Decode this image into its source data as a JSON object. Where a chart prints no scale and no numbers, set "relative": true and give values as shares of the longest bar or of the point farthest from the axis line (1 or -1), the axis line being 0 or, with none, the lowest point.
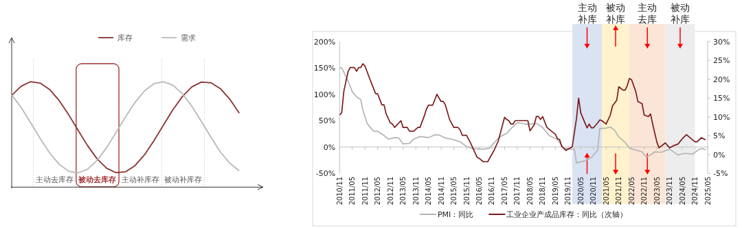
{
  "chart_data": [
    {
      "type": "line",
      "relative": true,
      "legend": "top",
      "categories": [
        null,
        null,
        null,
        null,
        null,
        null,
        null,
        null,
        null,
        null,
        null,
        null,
        null,
        null,
        null,
        null,
        null,
        null,
        null,
        null,
        null,
        null,
        null,
        null,
        null
      ],
      "series": [
        {
          "name": "库存",
          "color": "#8b3030",
          "values": [
            0.87,
            0.957,
            1,
            0.987,
            0.926,
            0.822,
            0.688,
            0.539,
            0.394,
            0.269,
            0.18,
            0.137,
            0.145,
            0.204,
            0.306,
            0.44,
            0.588,
            0.734,
            0.86,
            0.951,
            0.996,
            0.99,
            0.934,
            0.834,
            0.701
          ]
        },
        {
          "name": "需求",
          "color": "#b8b8b8",
          "values": [
            0.876,
            0.755,
            0.611,
            0.461,
            0.325,
            0.217,
            0.151,
            0.135,
            0.17,
            0.253,
            0.373,
            0.516,
            0.666,
            0.803,
            0.913,
            0.981,
            1,
            0.967,
            0.886,
            0.767,
            0.624,
            0.474,
            0.335,
            0.226,
            0.155
          ]
        }
      ],
      "annotations": [
        "主动去库存",
        "被动去库存",
        "主动补库存",
        "被动补库存"
      ]
    },
    {
      "type": "line",
      "legend": "bottom",
      "xlim": [
        "2010-11",
        "2025-05"
      ],
      "xticks": [
        {
          "value": "2010-11",
          "label": "2010/11"
        },
        {
          "value": "2011-05",
          "label": "2011/05"
        },
        {
          "value": "2011-11",
          "label": "2011/11"
        },
        {
          "value": "2012-05",
          "label": "2012/05"
        },
        {
          "value": "2012-11",
          "label": "2012/11"
        },
        {
          "value": "2013-05",
          "label": "2013/05"
        },
        {
          "value": "2013-11",
          "label": "2013/11"
        },
        {
          "value": "2014-05",
          "label": "2014/05"
        },
        {
          "value": "2014-11",
          "label": "2014/11"
        },
        {
          "value": "2015-05",
          "label": "2015/05"
        },
        {
          "value": "2015-11",
          "label": "2015/11"
        },
        {
          "value": "2016-05",
          "label": "2016/05"
        },
        {
          "value": "2016-11",
          "label": "2016/11"
        },
        {
          "value": "2017-05",
          "label": "2017/05"
        },
        {
          "value": "2017-11",
          "label": "2017/11"
        },
        {
          "value": "2018-05",
          "label": "2018/05"
        },
        {
          "value": "2018-11",
          "label": "2018/11"
        },
        {
          "value": "2019-05",
          "label": "2019/05"
        },
        {
          "value": "2019-11",
          "label": "2019/11"
        },
        {
          "value": "2020-05",
          "label": "2020/05"
        },
        {
          "value": "2020-11",
          "label": "2020/11"
        },
        {
          "value": "2021-05",
          "label": "2021/05"
        },
        {
          "value": "2021-11",
          "label": "2021/11"
        },
        {
          "value": "2022-05",
          "label": "2022/05"
        },
        {
          "value": "2022-11",
          "label": "2022/11"
        },
        {
          "value": "2023-05",
          "label": "2023/05"
        },
        {
          "value": "2023-11",
          "label": "2023/11"
        },
        {
          "value": "2024-05",
          "label": "2024/05"
        },
        {
          "value": "2024-11",
          "label": "2024/11"
        },
        {
          "value": "2025-05",
          "label": "2025/05"
        }
      ],
      "ylim": [
        -50,
        200
      ],
      "yticks": [
        {
          "value": -50,
          "label": "-50%"
        },
        {
          "value": 0,
          "label": "0%"
        },
        {
          "value": 50,
          "label": "50%"
        },
        {
          "value": 100,
          "label": "100%"
        },
        {
          "value": 150,
          "label": "150%"
        },
        {
          "value": 200,
          "label": "200%"
        }
      ],
      "y2lim": [
        -5,
        30
      ],
      "y2ticks": [
        {
          "value": -5,
          "label": "-5%"
        },
        {
          "value": 0,
          "label": "0%"
        },
        {
          "value": 5,
          "label": "5%"
        },
        {
          "value": 10,
          "label": "10%"
        },
        {
          "value": 15,
          "label": "15%"
        },
        {
          "value": 20,
          "label": "20%"
        },
        {
          "value": 25,
          "label": "25%"
        },
        {
          "value": 30,
          "label": "30%"
        }
      ],
      "bands": [
        {
          "axis": "x",
          "from": "2020-01",
          "to": "2021-03",
          "label": "主动补库",
          "color": "#dae3f3"
        },
        {
          "axis": "x",
          "from": "2021-03",
          "to": "2022-04",
          "label": "被动补库",
          "color": "#fff2cc"
        },
        {
          "axis": "x",
          "from": "2022-04",
          "to": "2023-09",
          "label": "主动去库",
          "color": "#fbe5d6"
        },
        {
          "axis": "x",
          "from": "2023-09",
          "to": "2024-11",
          "label": "被动补库",
          "color": "#ededed"
        }
      ],
      "series": [
        {
          "name": "PMI：同比",
          "color": "#b4b4b4",
          "x": [
            "2010-11",
            "2010-12",
            "2011-03",
            "2011-05",
            "2011-07",
            "2011-09",
            "2011-10",
            "2011-12",
            "2012-03",
            "2012-05",
            "2012-08",
            "2012-10",
            "2013-01",
            "2013-03",
            "2013-05",
            "2013-08",
            "2013-10",
            "2014-01",
            "2014-05",
            "2014-08",
            "2014-10",
            "2015-01",
            "2015-04",
            "2015-08",
            "2015-11",
            "2016-02",
            "2016-07",
            "2016-10",
            "2016-12",
            "2017-03",
            "2017-06",
            "2017-08",
            "2017-11",
            "2018-04",
            "2018-08",
            "2018-11",
            "2019-02",
            "2019-06",
            "2019-09",
            "2019-12",
            "2020-02",
            "2020-03",
            "2020-07",
            "2020-10",
            "2021-01",
            "2021-02",
            "2021-05",
            "2021-07",
            "2021-09",
            "2021-11",
            "2022-02",
            "2022-04",
            "2022-10",
            "2022-12",
            "2023-02",
            "2023-04",
            "2023-07",
            "2023-11",
            "2024-03",
            "2024-06",
            "2024-10",
            "2025-01",
            "2025-03",
            "2025-04"
          ],
          "values": [
            150,
            150,
            125,
            105,
            95,
            90,
            70,
            45,
            30,
            30,
            22,
            15,
            18,
            17,
            6,
            7,
            15,
            20,
            18,
            23,
            23,
            17,
            15,
            10,
            1,
            -3,
            -4,
            -2,
            8,
            20,
            26,
            35,
            46,
            43,
            45,
            37,
            22,
            14,
            -2,
            -4,
            -4,
            -30,
            -26,
            -20,
            -6,
            35,
            36,
            38,
            32,
            19,
            9,
            -2,
            -9,
            -19,
            -15,
            -9,
            -10,
            -4,
            -15,
            -12,
            -13,
            -4,
            -3,
            -6
          ]
        },
        {
          "name": "工业企业产成品库存：同比（次轴）",
          "color": "#7b1a1a",
          "axis": "y2",
          "x": [
            "2010-11",
            "2010-12",
            "2011-01",
            "2011-03",
            "2011-04",
            "2011-06",
            "2011-07",
            "2011-08",
            "2011-09",
            "2011-10",
            "2011-11",
            "2012-01",
            "2012-04",
            "2012-05",
            "2012-07",
            "2012-08",
            "2012-09",
            "2012-11",
            "2012-12",
            "2013-01",
            "2013-04",
            "2013-05",
            "2013-07",
            "2013-08",
            "2013-10",
            "2013-12",
            "2014-01",
            "2014-03",
            "2014-04",
            "2014-05",
            "2014-07",
            "2014-09",
            "2014-10",
            "2014-11",
            "2014-12",
            "2015-01",
            "2015-03",
            "2015-05",
            "2015-07",
            "2015-08",
            "2015-09",
            "2015-11",
            "2016-01",
            "2016-04",
            "2016-05",
            "2016-07",
            "2016-09",
            "2016-12",
            "2017-02",
            "2017-05",
            "2017-06",
            "2017-07",
            "2017-08",
            "2017-09",
            "2017-10",
            "2018-01",
            "2018-03",
            "2018-04",
            "2018-05",
            "2018-07",
            "2018-08",
            "2018-09",
            "2018-10",
            "2018-11",
            "2019-01",
            "2019-05",
            "2019-06",
            "2019-07",
            "2019-08",
            "2019-10",
            "2020-01",
            "2020-03",
            "2020-04",
            "2020-05",
            "2020-07",
            "2020-08",
            "2020-09",
            "2020-10",
            "2020-11",
            "2021-01",
            "2021-02",
            "2021-03",
            "2021-05",
            "2021-07",
            "2021-08",
            "2021-10",
            "2021-11",
            "2022-01",
            "2022-02",
            "2022-03",
            "2022-04",
            "2022-05",
            "2022-07",
            "2022-08",
            "2022-10",
            "2022-11",
            "2023-01",
            "2023-02",
            "2023-03",
            "2023-05",
            "2023-06",
            "2023-09",
            "2023-11",
            "2024-01",
            "2024-03",
            "2024-05",
            "2024-07",
            "2024-08",
            "2024-11",
            "2024-12",
            "2025-02",
            "2025-04"
          ],
          "values": [
            10.5,
            11.1,
            16.8,
            22,
            23.1,
            23.1,
            22.1,
            23.1,
            23.1,
            24.1,
            23.5,
            20.5,
            16.2,
            16.1,
            13.2,
            13.2,
            10.8,
            8.4,
            8.1,
            7.2,
            9.0,
            7.2,
            7.2,
            6.2,
            6.2,
            7.2,
            7.2,
            10.2,
            12,
            13.1,
            13.1,
            16,
            15,
            14.1,
            14.1,
            13.2,
            9.3,
            7.2,
            7.2,
            6.5,
            5.1,
            5.1,
            3,
            -0.7,
            -1.0,
            -1.9,
            -1.9,
            1.1,
            3.6,
            9.9,
            9.3,
            9.0,
            8.1,
            8.1,
            9.0,
            9.0,
            9.0,
            9.0,
            6.3,
            7.9,
            10.1,
            10.1,
            9.3,
            10.1,
            7.2,
            5.4,
            4.2,
            4.0,
            2.2,
            1.1,
            2.1,
            9.6,
            15.0,
            11.1,
            8.4,
            7.1,
            8.1,
            7.1,
            7.1,
            8.4,
            9.2,
            9.0,
            8.1,
            10.5,
            12.9,
            14.4,
            18,
            17.1,
            17.1,
            18.3,
            20.2,
            19.9,
            16.8,
            14.1,
            13.5,
            10.5,
            10.1,
            10.8,
            8.1,
            3.3,
            1.8,
            3.1,
            1.8,
            2.4,
            2.8,
            4.2,
            5.3,
            4.8,
            3.4,
            3.4,
            4.5,
            3.9
          ]
        }
      ]
    }
  ]
}
